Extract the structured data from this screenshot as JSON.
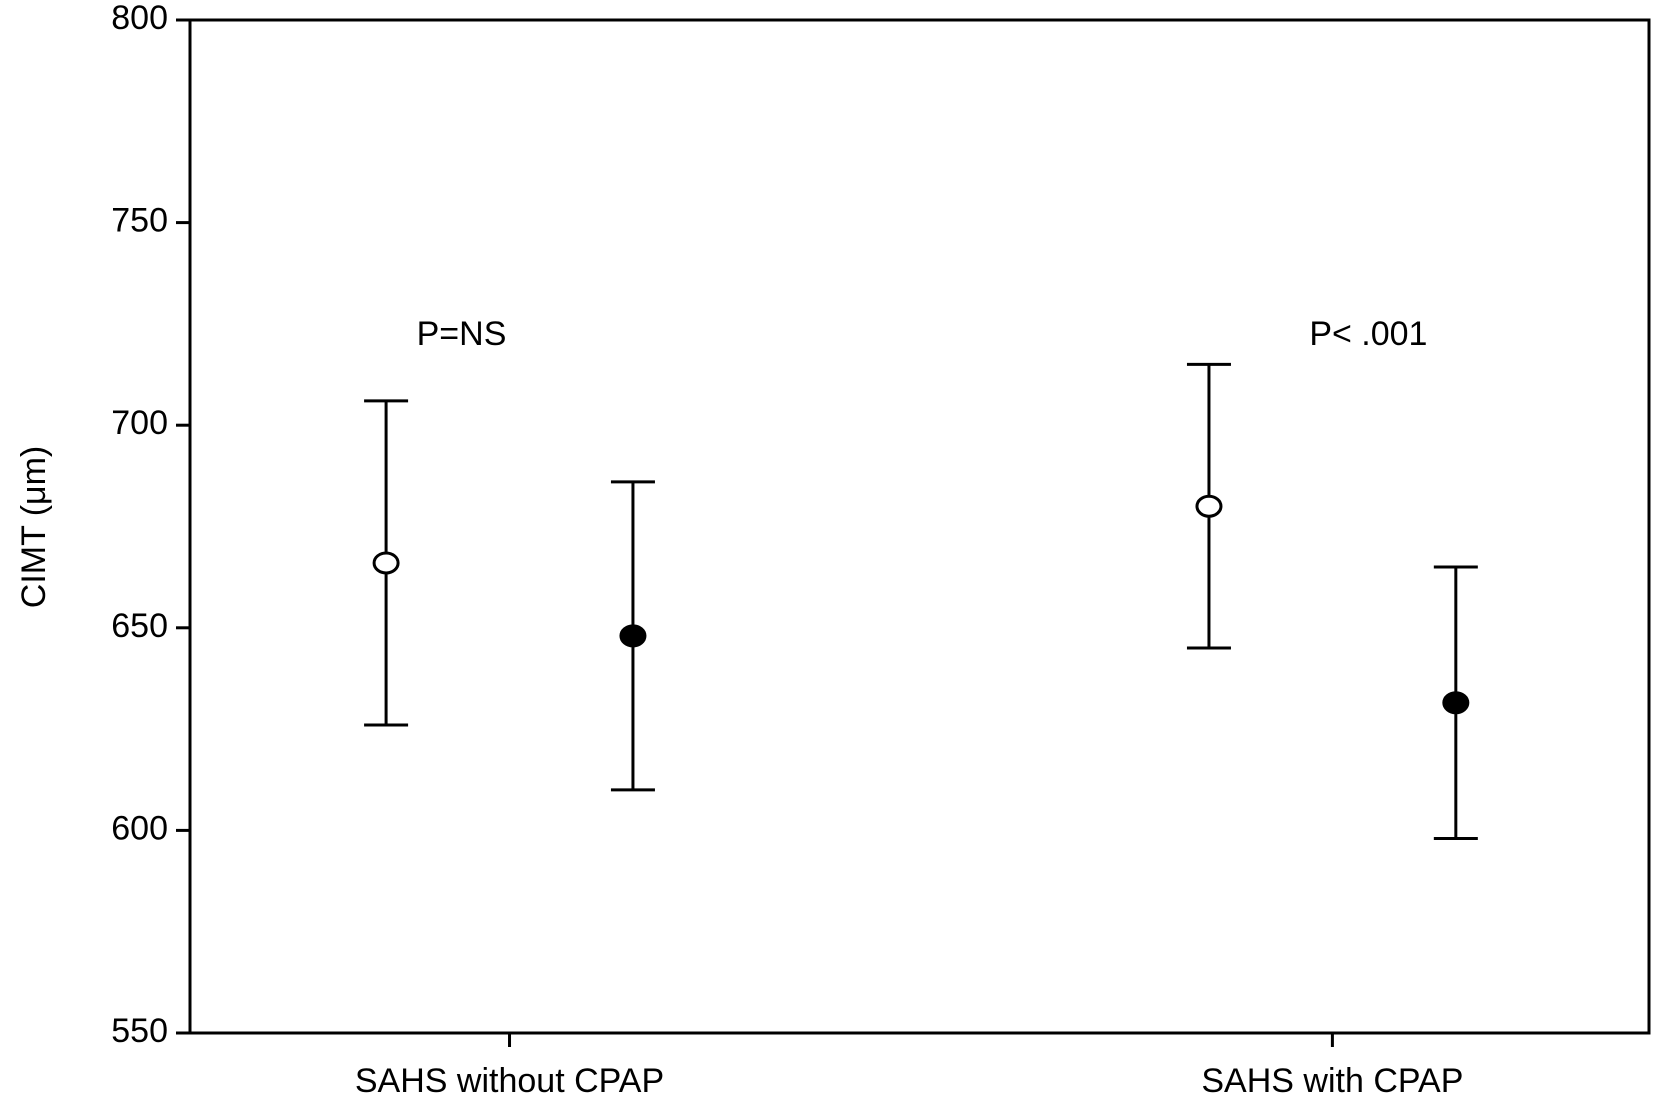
{
  "chart_data": {
    "type": "errorbar",
    "ylabel": "CIMT (μm)",
    "categories": [
      "SAHS without CPAP",
      "SAHS with CPAP"
    ],
    "series": [
      {
        "color": "#000000",
        "marker_fill": "#ffffff",
        "values": [
          666,
          680
        ],
        "errors": [
          40,
          35
        ]
      },
      {
        "color": "#000000",
        "marker_fill": "#000000",
        "values": [
          648,
          631.5
        ],
        "errors": [
          38,
          33.5
        ]
      }
    ],
    "annotations": [
      "P=NS",
      "P< .001"
    ],
    "ylim": [
      550,
      800
    ],
    "yticks": [
      550,
      600,
      650,
      700,
      750,
      800
    ],
    "grid": false
  }
}
